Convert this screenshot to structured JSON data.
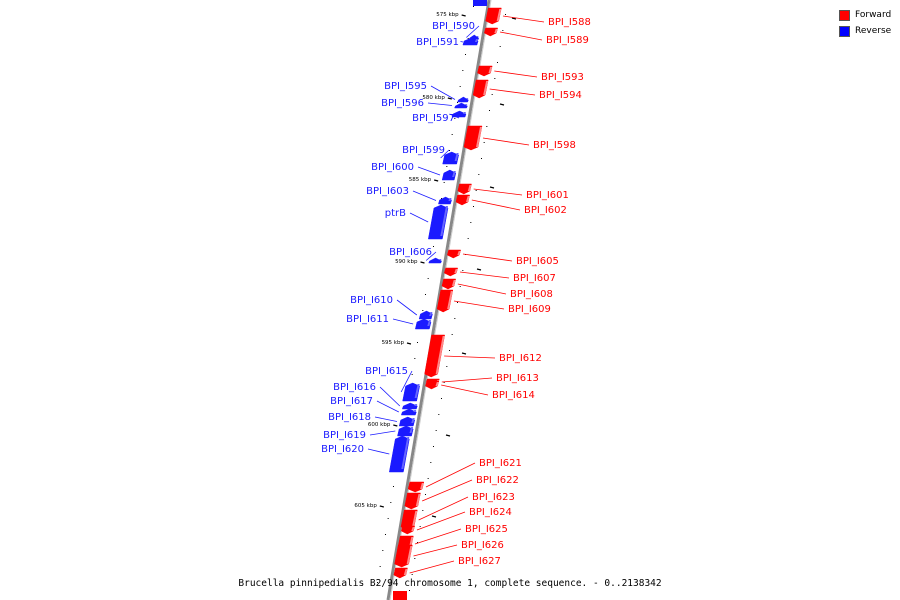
{
  "caption": "Brucella pinnipedialis B2/94 chromosome 1, complete sequence. - 0..2138342",
  "legend": [
    {
      "label": "Forward",
      "color": "#ff0000"
    },
    {
      "label": "Reverse",
      "color": "#0000ff"
    }
  ],
  "colors": {
    "forward": "#ff0000",
    "reverse": "#1a1aff",
    "backbone": "#888888",
    "tick": "#000000"
  },
  "kbp_labels": [
    "575 kbp",
    "580 kbp",
    "585 kbp",
    "590 kbp",
    "595 kbp",
    "600 kbp",
    "605 kbp"
  ],
  "reverse_genes": [
    "BPI_I590",
    "BPI_I591",
    "BPI_I595",
    "BPI_I596",
    "BPI_I597",
    "BPI_I599",
    "BPI_I600",
    "BPI_I603",
    "ptrB",
    "BPI_I606",
    "BPI_I610",
    "BPI_I611",
    "BPI_I615",
    "BPI_I616",
    "BPI_I617",
    "BPI_I618",
    "BPI_I619",
    "BPI_I620"
  ],
  "forward_genes": [
    "BPI_I588",
    "BPI_I589",
    "BPI_I593",
    "BPI_I594",
    "BPI_I598",
    "BPI_I601",
    "BPI_I602",
    "BPI_I605",
    "BPI_I607",
    "BPI_I608",
    "BPI_I609",
    "BPI_I612",
    "BPI_I613",
    "BPI_I614",
    "BPI_I621",
    "BPI_I622",
    "BPI_I623",
    "BPI_I624",
    "BPI_I625",
    "BPI_I626",
    "BPI_I627"
  ]
}
